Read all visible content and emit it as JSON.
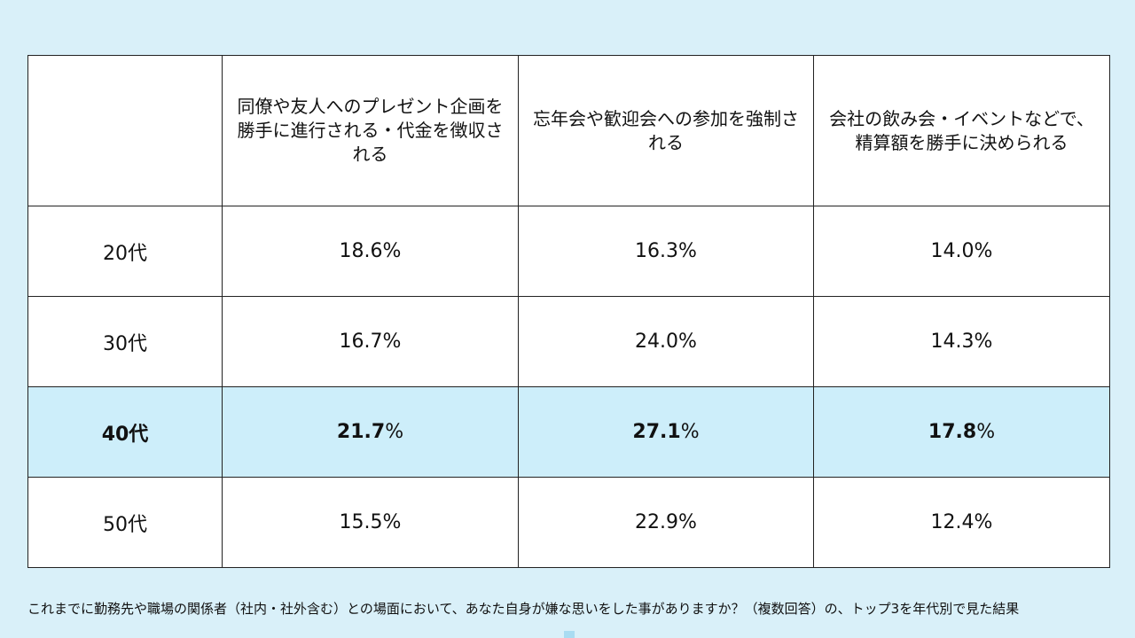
{
  "chart_data": {
    "type": "table",
    "columns": [
      "",
      "同僚や友人へのプレゼント企画を勝手に進行される・代金を徴収される",
      "忘年会や歓迎会への参加を強制される",
      "会社の飲み会・イベントなどで、精算額を勝手に決められる"
    ],
    "rows": [
      {
        "label": "20代",
        "values": [
          "18.6",
          "16.3",
          "14.0"
        ],
        "highlight": false
      },
      {
        "label": "30代",
        "values": [
          "16.7",
          "24.0",
          "14.3"
        ],
        "highlight": false
      },
      {
        "label": "40代",
        "values": [
          "21.7",
          "27.1",
          "17.8"
        ],
        "highlight": true
      },
      {
        "label": "50代",
        "values": [
          "15.5",
          "22.9",
          "12.4"
        ],
        "highlight": false
      }
    ],
    "unit": "%",
    "caption": "これまでに勤務先や職場の関係者（社内・社外含む）との場面において、あなた自身が嫌な思いをした事がありますか？（複数回答）の、トップ3を年代別で見た結果"
  },
  "colors": {
    "background": "#d9f0f9",
    "highlight_row": "#cdeefa",
    "border": "#222222"
  }
}
